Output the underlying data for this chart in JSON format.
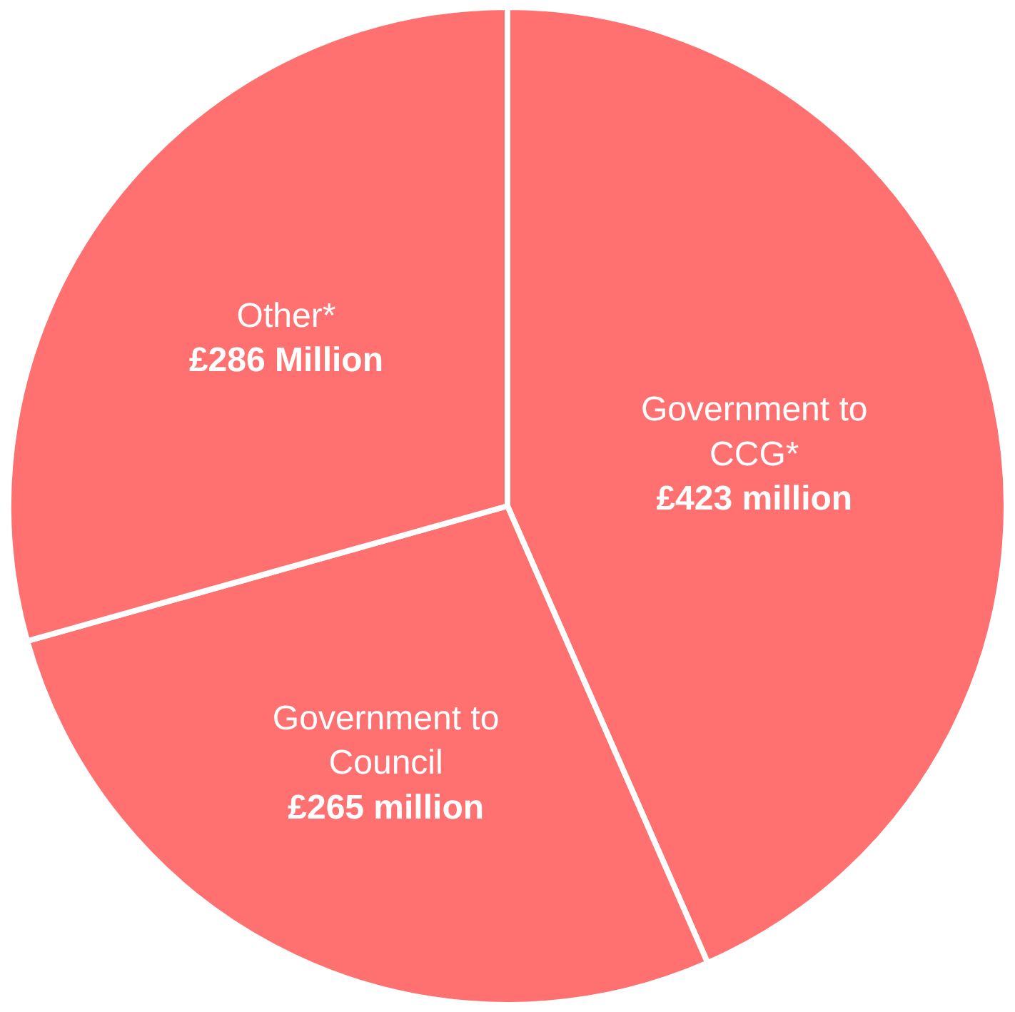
{
  "chart_data": {
    "type": "pie",
    "categories": [
      "Government to CCG*",
      "Government to Council",
      "Other*"
    ],
    "values": [
      423,
      265,
      286
    ],
    "value_labels": [
      "£423 million",
      "£265 million",
      "£286 Million"
    ],
    "colors": [
      "#ff7070",
      "#ff7070",
      "#ff7070"
    ],
    "legend": false
  }
}
